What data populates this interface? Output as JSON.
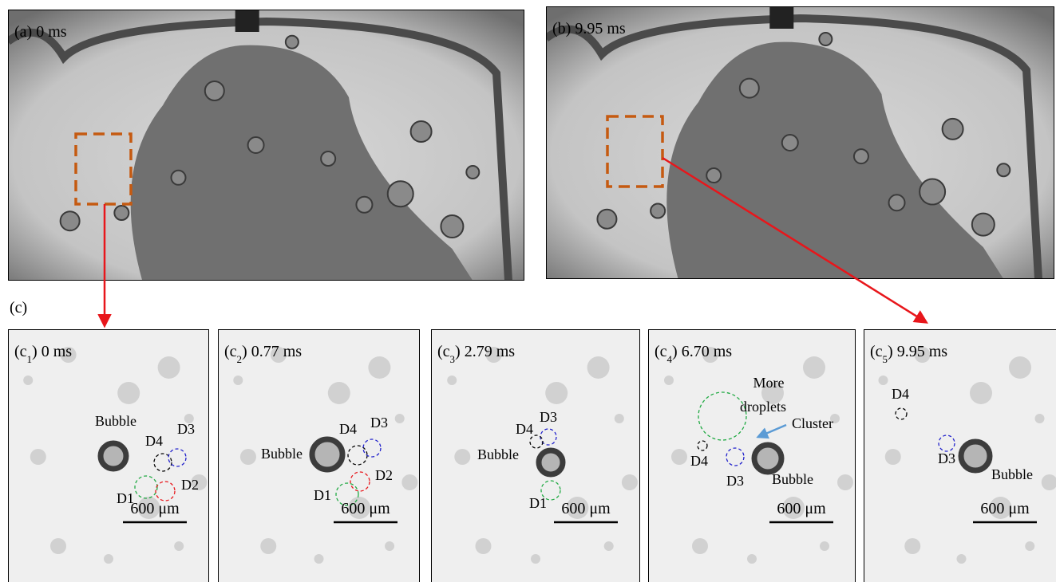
{
  "overview_panels": [
    {
      "label": "(a) 0 ms"
    },
    {
      "label": "(b) 9.95 ms"
    }
  ],
  "section_label": "(c)",
  "zoom_panels": [
    {
      "label_prefix": "(c",
      "label_sub": "1",
      "label_suffix": ") 0 ms",
      "scale_bar": "600 μm",
      "annotations": [
        "Bubble",
        "D4",
        "D3",
        "D1",
        "D2"
      ]
    },
    {
      "label_prefix": "(c",
      "label_sub": "2",
      "label_suffix": ") 0.77 ms",
      "scale_bar": "600 μm",
      "annotations": [
        "Bubble",
        "D4",
        "D3",
        "D2",
        "D1"
      ]
    },
    {
      "label_prefix": "(c",
      "label_sub": "3",
      "label_suffix": ") 2.79 ms",
      "scale_bar": "600 μm",
      "annotations": [
        "D3",
        "D4",
        "Bubble",
        "D1"
      ]
    },
    {
      "label_prefix": "(c",
      "label_sub": "4",
      "label_suffix": ") 6.70 ms",
      "scale_bar": "600 μm",
      "annotations": [
        "More",
        "droplets",
        "Cluster",
        "D4",
        "D3",
        "Bubble"
      ]
    },
    {
      "label_prefix": "(c",
      "label_sub": "5",
      "label_suffix": ") 9.95 ms",
      "scale_bar": "600 μm",
      "annotations": [
        "D4",
        "D3",
        "Bubble"
      ]
    }
  ]
}
